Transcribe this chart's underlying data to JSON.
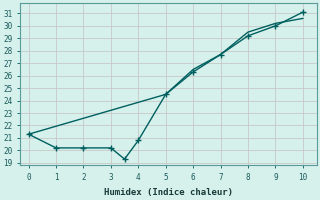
{
  "xlabel": "Humidex (Indice chaleur)",
  "bg_color": "#d6f0eb",
  "grid_color": "#c8c8c8",
  "line_color": "#006060",
  "xlim": [
    -0.3,
    10.5
  ],
  "ylim": [
    18.8,
    31.8
  ],
  "yticks": [
    19,
    20,
    21,
    22,
    23,
    24,
    25,
    26,
    27,
    28,
    29,
    30,
    31
  ],
  "xticks": [
    0,
    1,
    2,
    3,
    4,
    5,
    6,
    7,
    8,
    9,
    10
  ],
  "line1_x": [
    0,
    1,
    2,
    3,
    3.5,
    4,
    5,
    6,
    7,
    8,
    9,
    10
  ],
  "line1_y": [
    21.3,
    20.2,
    20.2,
    20.2,
    19.3,
    20.8,
    24.5,
    26.3,
    27.7,
    29.2,
    30.0,
    31.1
  ],
  "line2_x": [
    0,
    5,
    6,
    7,
    8,
    9,
    10
  ],
  "line2_y": [
    21.3,
    24.5,
    26.5,
    27.7,
    29.5,
    30.2,
    30.6
  ]
}
